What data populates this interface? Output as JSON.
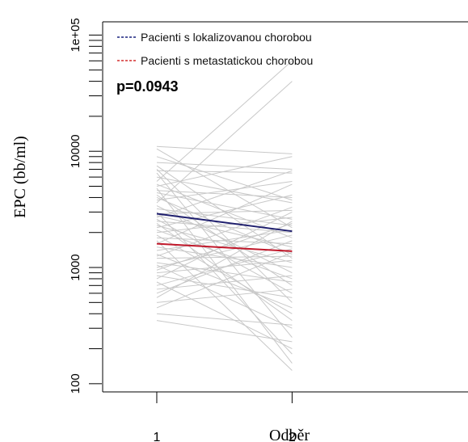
{
  "chart_data": {
    "type": "line",
    "ylabel": "EPC (bb/ml)",
    "xlabel": "Odběr",
    "yscale": "log",
    "ylim": [
      85,
      130000
    ],
    "xlim": [
      0.6,
      3.3
    ],
    "x": [
      1,
      2
    ],
    "x_tick_labels": [
      "1",
      "2"
    ],
    "y_ticks": [
      100,
      1000,
      10000,
      100000
    ],
    "y_tick_labels": [
      "100",
      "1000",
      "10000",
      "1e+05"
    ],
    "legend": {
      "placement": "top-left",
      "entries": [
        {
          "label": "Pacienti s lokalizovanou chorobou",
          "color": "#1a237e"
        },
        {
          "label": "Pacienti s metastatickou chorobou",
          "color": "#d32f2f"
        }
      ]
    },
    "annotation": "p=0.0943",
    "series": [
      {
        "label_ref": 0,
        "color": "#1f1f6e",
        "values": [
          2900,
          2050
        ]
      },
      {
        "label_ref": 1,
        "color": "#c0182a",
        "values": [
          1600,
          1380
        ]
      }
    ],
    "individual_color": "#c8c8c8",
    "individual_lines": [
      [
        11000,
        9500
      ],
      [
        10500,
        2200
      ],
      [
        9000,
        3800
      ],
      [
        8000,
        7000
      ],
      [
        7500,
        1200
      ],
      [
        7000,
        500
      ],
      [
        6800,
        6500
      ],
      [
        6500,
        250
      ],
      [
        6000,
        3600
      ],
      [
        5500,
        60000
      ],
      [
        5200,
        1800
      ],
      [
        5000,
        9000
      ],
      [
        4800,
        150
      ],
      [
        4600,
        4000
      ],
      [
        4400,
        2600
      ],
      [
        4200,
        700
      ],
      [
        4000,
        1300
      ],
      [
        3800,
        5500
      ],
      [
        3600,
        40000
      ],
      [
        3400,
        900
      ],
      [
        3200,
        2300
      ],
      [
        3000,
        180
      ],
      [
        2900,
        3100
      ],
      [
        2800,
        1500
      ],
      [
        2700,
        6800
      ],
      [
        2600,
        600
      ],
      [
        2500,
        2000
      ],
      [
        2400,
        350
      ],
      [
        2300,
        1100
      ],
      [
        2200,
        4200
      ],
      [
        2100,
        800
      ],
      [
        2000,
        2700
      ],
      [
        1900,
        400
      ],
      [
        1800,
        1600
      ],
      [
        1700,
        130
      ],
      [
        1600,
        5200
      ],
      [
        1500,
        1000
      ],
      [
        1400,
        2100
      ],
      [
        1300,
        450
      ],
      [
        1250,
        3300
      ],
      [
        1200,
        1250
      ],
      [
        1100,
        750
      ],
      [
        1050,
        300
      ],
      [
        1000,
        1900
      ],
      [
        950,
        2400
      ],
      [
        900,
        1150
      ],
      [
        850,
        550
      ],
      [
        800,
        3000
      ],
      [
        750,
        200
      ],
      [
        700,
        1450
      ],
      [
        650,
        850
      ],
      [
        600,
        1700
      ],
      [
        550,
        2500
      ],
      [
        500,
        650
      ],
      [
        450,
        1350
      ],
      [
        400,
        320
      ],
      [
        350,
        230
      ]
    ]
  }
}
